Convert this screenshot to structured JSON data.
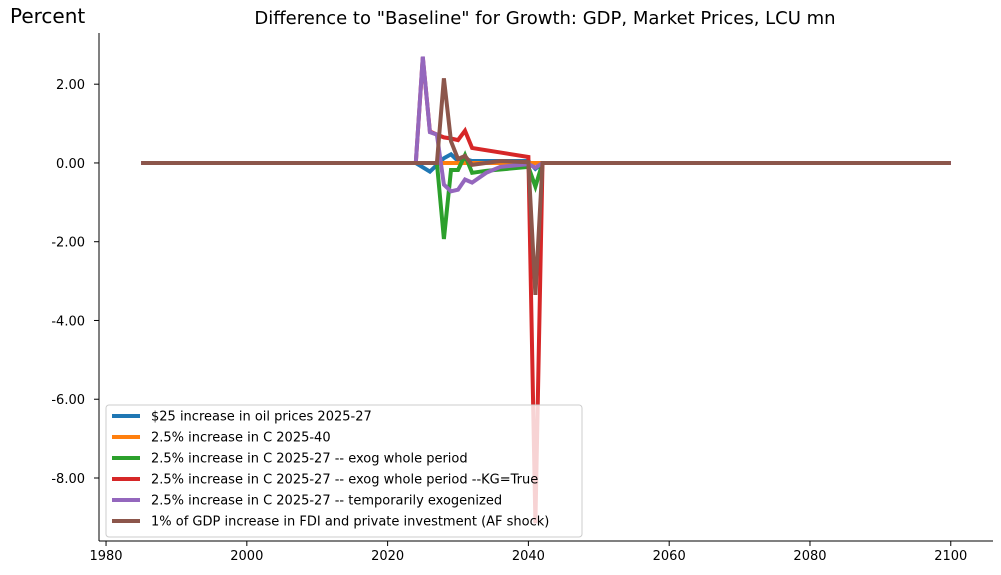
{
  "chart_data": {
    "type": "line",
    "title": "Difference to \"Baseline\" for Growth: GDP, Market Prices, LCU mn",
    "ylabel": "Percent",
    "xlabel": "",
    "xlim": [
      1979,
      2106
    ],
    "ylim": [
      -9.6,
      3.3
    ],
    "x_ticks": [
      1980,
      2000,
      2020,
      2040,
      2060,
      2080,
      2100
    ],
    "y_ticks": [
      2,
      0,
      -2,
      -4,
      -6,
      -8
    ],
    "y_tick_labels": [
      "2.00",
      "0.00",
      "-2.00",
      "-4.00",
      "-6.00",
      "-8.00"
    ],
    "grid": false,
    "legend_position": "lower-left",
    "series": [
      {
        "name": "$25 increase in oil prices 2025-27",
        "color": "#1f77b4",
        "points": [
          [
            1985,
            0
          ],
          [
            2024,
            0
          ],
          [
            2026,
            -0.22
          ],
          [
            2027,
            -0.05
          ],
          [
            2028,
            0.12
          ],
          [
            2029,
            0.22
          ],
          [
            2030,
            0.05
          ],
          [
            2031,
            0.1
          ],
          [
            2032,
            0.05
          ],
          [
            2040,
            0.05
          ],
          [
            2041,
            -0.15
          ],
          [
            2042,
            0
          ],
          [
            2100,
            0
          ]
        ]
      },
      {
        "name": "2.5% increase in C 2025-40",
        "color": "#ff7f0e",
        "points": [
          [
            1985,
            0
          ],
          [
            2100,
            0
          ]
        ]
      },
      {
        "name": "2.5% increase in C 2025-27 -- exog whole period",
        "color": "#2ca02c",
        "points": [
          [
            1985,
            0
          ],
          [
            2024,
            0
          ],
          [
            2027,
            0
          ],
          [
            2028,
            -1.93
          ],
          [
            2029,
            -0.18
          ],
          [
            2030,
            -0.18
          ],
          [
            2031,
            0.2
          ],
          [
            2032,
            -0.25
          ],
          [
            2034,
            -0.2
          ],
          [
            2040,
            -0.1
          ],
          [
            2041,
            -0.6
          ],
          [
            2042,
            0
          ],
          [
            2100,
            0
          ]
        ]
      },
      {
        "name": "2.5% increase in C 2025-27 -- exog whole period --KG=True",
        "color": "#d62728",
        "points": [
          [
            1985,
            0
          ],
          [
            2024,
            0
          ],
          [
            2025,
            2.68
          ],
          [
            2026,
            0.8
          ],
          [
            2027,
            0.72
          ],
          [
            2028,
            0.65
          ],
          [
            2029,
            0.62
          ],
          [
            2030,
            0.58
          ],
          [
            2031,
            0.82
          ],
          [
            2032,
            0.38
          ],
          [
            2040,
            0.15
          ],
          [
            2041,
            -9.15
          ],
          [
            2042,
            0
          ],
          [
            2100,
            0
          ]
        ]
      },
      {
        "name": "2.5% increase in C 2025-27 -- temporarily exogenized",
        "color": "#9467bd",
        "points": [
          [
            1985,
            0
          ],
          [
            2024,
            0
          ],
          [
            2025,
            2.7
          ],
          [
            2026,
            0.78
          ],
          [
            2027,
            0.72
          ],
          [
            2028,
            -0.55
          ],
          [
            2029,
            -0.72
          ],
          [
            2030,
            -0.68
          ],
          [
            2031,
            -0.42
          ],
          [
            2032,
            -0.5
          ],
          [
            2034,
            -0.25
          ],
          [
            2036,
            -0.1
          ],
          [
            2040,
            -0.03
          ],
          [
            2041,
            -0.12
          ],
          [
            2042,
            0
          ],
          [
            2100,
            0
          ]
        ]
      },
      {
        "name": "1% of GDP increase in FDI and private investment (AF shock)",
        "color": "#8c564b",
        "points": [
          [
            1985,
            0
          ],
          [
            2027,
            0
          ],
          [
            2028,
            2.15
          ],
          [
            2029,
            0.55
          ],
          [
            2030,
            0.1
          ],
          [
            2031,
            0.18
          ],
          [
            2032,
            -0.05
          ],
          [
            2036,
            0.05
          ],
          [
            2040,
            0.02
          ],
          [
            2041,
            -3.35
          ],
          [
            2042,
            0
          ],
          [
            2100,
            0
          ]
        ]
      }
    ]
  }
}
